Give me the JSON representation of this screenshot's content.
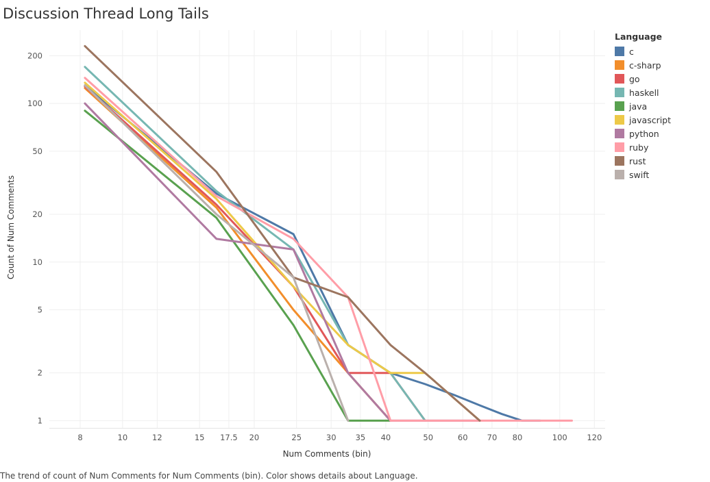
{
  "title": "Discussion Thread Long Tails",
  "caption": "The trend of count of Num Comments for Num Comments (bin).  Color shows details about Language.",
  "legend_title": "Language",
  "chart_data": {
    "type": "line",
    "title": "Discussion Thread Long Tails",
    "xlabel": "Num Comments (bin)",
    "ylabel": "Count of Num Comments",
    "xscale": "log",
    "yscale": "log",
    "xlim": [
      6.8,
      127
    ],
    "ylim": [
      0.9,
      290
    ],
    "x_ticks": [
      8,
      10,
      12,
      15,
      17.5,
      20,
      25,
      30,
      35,
      40,
      50,
      60,
      70,
      80,
      100,
      120
    ],
    "x_tick_labels": [
      "8",
      "10",
      "12",
      "15",
      "17.5",
      "20",
      "25",
      "30",
      "35",
      "40",
      "50",
      "60",
      "70",
      "80",
      "100",
      "120"
    ],
    "y_ticks": [
      1,
      2,
      5,
      10,
      20,
      50,
      100,
      200
    ],
    "y_tick_labels": [
      "1",
      "2",
      "5",
      "10",
      "20",
      "50",
      "100",
      "200"
    ],
    "grid": true,
    "legend_position": "right",
    "series": [
      {
        "name": "c",
        "color": "#4e79a7",
        "x": [
          8.2,
          16.4,
          24.6,
          32.8,
          41,
          49.2,
          57.4,
          65.6,
          73.8,
          82,
          90.2
        ],
        "y": [
          130,
          27,
          15,
          3,
          2,
          1.7,
          1.45,
          1.25,
          1.1,
          1,
          1
        ]
      },
      {
        "name": "c-sharp",
        "color": "#f28e2b",
        "x": [
          8.2,
          16.4,
          24.6,
          32.8,
          41
        ],
        "y": [
          125,
          22,
          5,
          2,
          1
        ]
      },
      {
        "name": "go",
        "color": "#e15759",
        "x": [
          8.2,
          16.4,
          24.6,
          32.8,
          41,
          49.2
        ],
        "y": [
          128,
          23,
          7,
          2,
          2,
          1
        ]
      },
      {
        "name": "haskell",
        "color": "#76b7b2",
        "x": [
          8.2,
          16.4,
          24.6,
          32.8,
          41,
          49.2
        ],
        "y": [
          170,
          28,
          12,
          3,
          2,
          1
        ]
      },
      {
        "name": "java",
        "color": "#59a14f",
        "x": [
          8.2,
          16.4,
          24.6,
          32.8,
          41
        ],
        "y": [
          90,
          19,
          4,
          1,
          1
        ]
      },
      {
        "name": "javascript",
        "color": "#edc948",
        "x": [
          8.2,
          16.4,
          24.6,
          32.8,
          41,
          49.2,
          65.6
        ],
        "y": [
          135,
          25,
          7,
          3,
          2,
          2,
          1
        ]
      },
      {
        "name": "python",
        "color": "#b07aa1",
        "x": [
          8.2,
          16.4,
          24.6,
          32.8,
          41,
          49.2,
          65.6
        ],
        "y": [
          100,
          14,
          12,
          2,
          1,
          1,
          1
        ]
      },
      {
        "name": "ruby",
        "color": "#ff9da7",
        "x": [
          8.2,
          16.4,
          24.6,
          32.8,
          41,
          49.2,
          106.6
        ],
        "y": [
          145,
          26,
          14,
          6,
          1,
          1,
          1
        ]
      },
      {
        "name": "rust",
        "color": "#9c755f",
        "x": [
          8.2,
          16.4,
          24.6,
          32.8,
          41,
          49.2,
          65.6
        ],
        "y": [
          230,
          37,
          8,
          6,
          3,
          2,
          1
        ]
      },
      {
        "name": "swift",
        "color": "#bab0ac",
        "x": [
          8.2,
          16.4,
          24.6,
          32.8
        ],
        "y": [
          130,
          20,
          8,
          1
        ]
      }
    ]
  }
}
